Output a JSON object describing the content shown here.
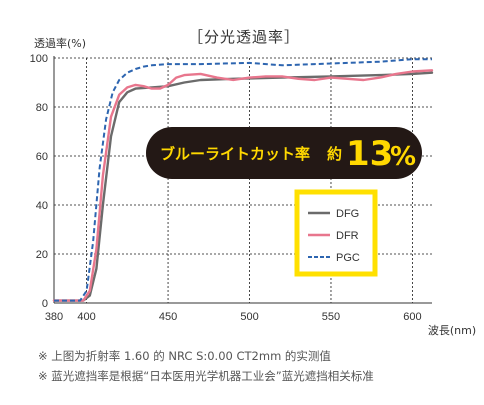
{
  "chart_data": {
    "type": "line",
    "title": "［分光透過率］",
    "ylabel": "透過率(%)",
    "xlabel": "波長(nm)",
    "xlim": [
      380,
      612
    ],
    "ylim": [
      0,
      100
    ],
    "x_ticks": [
      380,
      400,
      450,
      500,
      550,
      600
    ],
    "y_ticks": [
      0,
      20,
      40,
      60,
      80,
      100
    ],
    "grid": true,
    "legend_position": "bottom-right",
    "series": [
      {
        "name": "DFG",
        "color": "#6b6b6b",
        "style": "solid",
        "points": [
          [
            380,
            1
          ],
          [
            398,
            1
          ],
          [
            402,
            3
          ],
          [
            406,
            14
          ],
          [
            410,
            40
          ],
          [
            415,
            68
          ],
          [
            420,
            82
          ],
          [
            425,
            86
          ],
          [
            430,
            87.5
          ],
          [
            440,
            88
          ],
          [
            450,
            88.5
          ],
          [
            460,
            90
          ],
          [
            470,
            91
          ],
          [
            490,
            91.5
          ],
          [
            520,
            92
          ],
          [
            550,
            92.5
          ],
          [
            580,
            93
          ],
          [
            600,
            93.5
          ],
          [
            612,
            94
          ]
        ]
      },
      {
        "name": "DFR",
        "color": "#e8768d",
        "style": "solid",
        "points": [
          [
            380,
            1
          ],
          [
            398,
            1
          ],
          [
            402,
            5
          ],
          [
            406,
            22
          ],
          [
            410,
            52
          ],
          [
            415,
            76
          ],
          [
            420,
            85
          ],
          [
            425,
            88
          ],
          [
            430,
            89
          ],
          [
            435,
            88.5
          ],
          [
            440,
            87.5
          ],
          [
            445,
            87.5
          ],
          [
            450,
            89
          ],
          [
            455,
            92
          ],
          [
            460,
            93
          ],
          [
            470,
            93.5
          ],
          [
            480,
            92
          ],
          [
            490,
            91
          ],
          [
            500,
            92
          ],
          [
            510,
            92.5
          ],
          [
            520,
            92.5
          ],
          [
            530,
            91.5
          ],
          [
            540,
            91
          ],
          [
            550,
            92
          ],
          [
            560,
            91.5
          ],
          [
            570,
            91
          ],
          [
            580,
            92
          ],
          [
            590,
            93.5
          ],
          [
            600,
            94.5
          ],
          [
            612,
            95
          ]
        ]
      },
      {
        "name": "PGC",
        "color": "#2d65b0",
        "style": "dashed",
        "points": [
          [
            380,
            1
          ],
          [
            396,
            1
          ],
          [
            400,
            5
          ],
          [
            404,
            25
          ],
          [
            408,
            55
          ],
          [
            412,
            75
          ],
          [
            416,
            86
          ],
          [
            420,
            91
          ],
          [
            425,
            94
          ],
          [
            430,
            95.5
          ],
          [
            435,
            96.5
          ],
          [
            440,
            97
          ],
          [
            450,
            97.5
          ],
          [
            470,
            97.5
          ],
          [
            500,
            98
          ],
          [
            520,
            97
          ],
          [
            540,
            97.5
          ],
          [
            560,
            98
          ],
          [
            580,
            98.5
          ],
          [
            590,
            99
          ],
          [
            600,
            99.5
          ],
          [
            612,
            99.5
          ]
        ]
      }
    ],
    "annotation": {
      "text": "ブルーライトカット率",
      "prefix": "約",
      "value": "13",
      "unit": "%"
    }
  },
  "notes": [
    "※ 上图为折射率 1.60 的 NRC S:0.00 CT2mm 的实测值",
    "※ 蓝光遮挡率是根据“日本医用光学机器工业会”蓝光遮挡相关标准"
  ]
}
